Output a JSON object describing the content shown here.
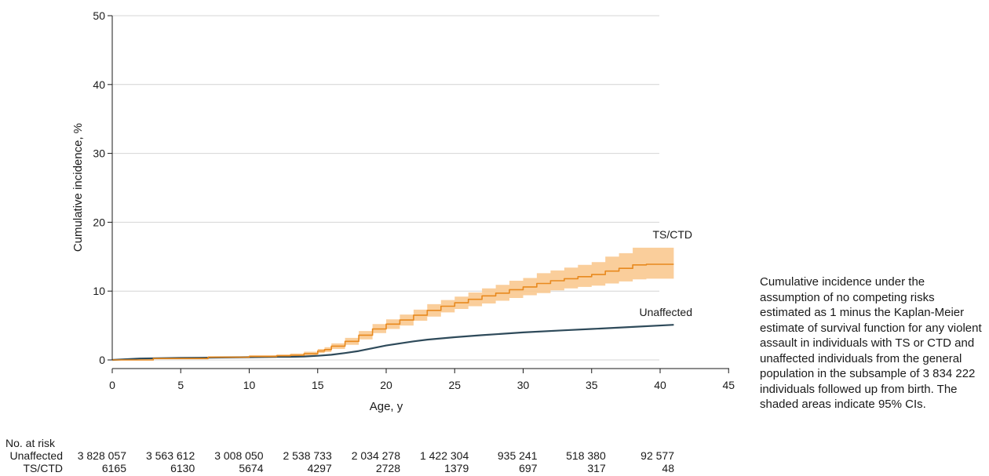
{
  "chart_data": {
    "type": "area",
    "xlabel": "Age, y",
    "ylabel": "Cumulative incidence, %",
    "xlim": [
      0,
      45
    ],
    "ylim": [
      0,
      50
    ],
    "x_ticks": [
      "0",
      "5",
      "10",
      "15",
      "20",
      "25",
      "30",
      "35",
      "40",
      "45"
    ],
    "y_ticks": [
      "0",
      "10",
      "20",
      "30",
      "40",
      "50"
    ],
    "grid": "horizontal",
    "series": [
      {
        "name": "Unaffected",
        "color": "#2e4a5a",
        "step": false,
        "x": [
          0,
          2,
          5,
          8,
          10,
          12,
          13,
          14,
          15,
          16,
          17,
          18,
          19,
          20,
          21,
          22,
          23,
          25,
          27,
          30,
          33,
          35,
          38,
          41
        ],
        "y": [
          0,
          0.2,
          0.3,
          0.35,
          0.4,
          0.45,
          0.45,
          0.5,
          0.6,
          0.75,
          1.0,
          1.3,
          1.7,
          2.1,
          2.4,
          2.7,
          2.95,
          3.3,
          3.6,
          4.0,
          4.3,
          4.5,
          4.8,
          5.1
        ]
      },
      {
        "name": "TS/CTD",
        "color": "#e8891e",
        "band_color": "#f9c68a",
        "step": true,
        "x": [
          0,
          3,
          7,
          10,
          12,
          13,
          14,
          15,
          15.5,
          16,
          17,
          18,
          19,
          20,
          21,
          22,
          23,
          24,
          25,
          26,
          27,
          28,
          29,
          30,
          31,
          32,
          33,
          34,
          35,
          36,
          37,
          38,
          39,
          41
        ],
        "y": [
          0,
          0.2,
          0.4,
          0.5,
          0.6,
          0.7,
          0.9,
          1.3,
          1.5,
          2.0,
          2.7,
          3.6,
          4.5,
          5.2,
          5.8,
          6.5,
          7.2,
          7.8,
          8.3,
          8.8,
          9.3,
          9.7,
          10.2,
          10.6,
          11.1,
          11.5,
          11.8,
          12.1,
          12.4,
          12.9,
          13.3,
          13.8,
          13.9,
          13.9
        ],
        "lower": [
          0,
          0.1,
          0.25,
          0.3,
          0.4,
          0.45,
          0.6,
          1.0,
          1.15,
          1.6,
          2.2,
          3.0,
          3.9,
          4.5,
          5.0,
          5.7,
          6.3,
          6.9,
          7.4,
          7.8,
          8.2,
          8.6,
          9.0,
          9.4,
          9.7,
          10.1,
          10.4,
          10.6,
          10.8,
          11.1,
          11.4,
          11.7,
          11.8,
          11.8
        ],
        "upper": [
          0,
          0.35,
          0.55,
          0.7,
          0.8,
          0.95,
          1.2,
          1.6,
          1.85,
          2.4,
          3.2,
          4.2,
          5.2,
          5.9,
          6.6,
          7.3,
          8.1,
          8.7,
          9.2,
          9.8,
          10.4,
          10.9,
          11.5,
          11.9,
          12.6,
          13.0,
          13.4,
          13.8,
          14.2,
          15.0,
          15.5,
          16.3,
          16.3,
          16.3
        ]
      }
    ],
    "annotations": [
      "TS/CTD",
      "Unaffected"
    ],
    "risk_table": {
      "title": "No. at risk",
      "ages": [
        0,
        5,
        10,
        15,
        20,
        25,
        30,
        35,
        40
      ],
      "rows": [
        {
          "label": "Unaffected",
          "values": [
            "3 828 057",
            "3 563 612",
            "3 008 050",
            "2 538 733",
            "2 034 278",
            "1 422 304",
            "935 241",
            "518 380",
            "92 577"
          ]
        },
        {
          "label": "TS/CTD",
          "values": [
            "6165",
            "6130",
            "5674",
            "4297",
            "2728",
            "1379",
            "697",
            "317",
            "48"
          ]
        }
      ]
    }
  },
  "caption": "Cumulative incidence under the assumption of no competing risks estimated as 1 minus the Kaplan-Meier estimate of survival function for any violent assault in individuals with TS or CTD and unaffected individuals from the general population in the subsample of 3 834 222 individuals followed up from birth. The shaded areas indicate 95% CIs."
}
